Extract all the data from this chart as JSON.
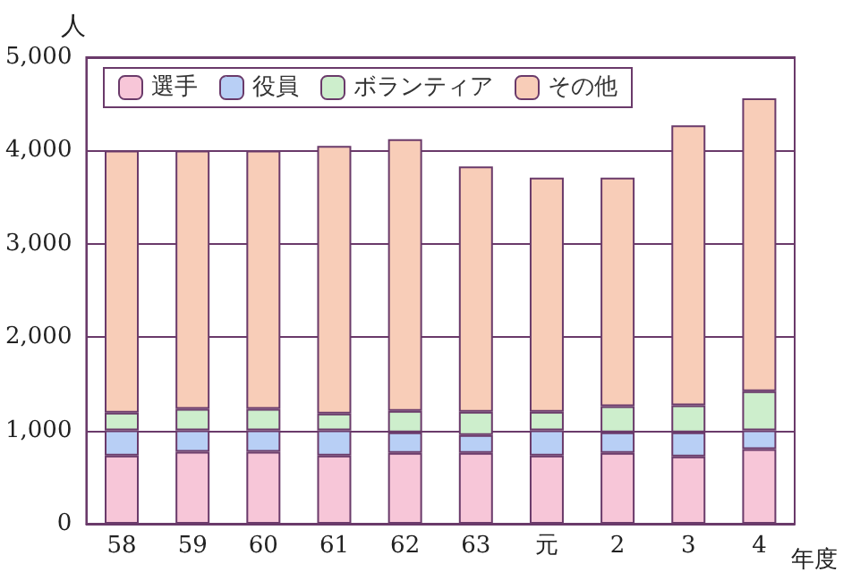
{
  "chart_data": {
    "type": "bar",
    "stacked": true,
    "ylabel": "人",
    "xlabel": "年度",
    "categories": [
      "58",
      "59",
      "60",
      "61",
      "62",
      "63",
      "元",
      "2",
      "3",
      "4"
    ],
    "series": [
      {
        "name": "選手",
        "color": "#f7c6d8",
        "values": [
          730,
          770,
          770,
          730,
          760,
          760,
          730,
          760,
          720,
          800
        ]
      },
      {
        "name": "役員",
        "color": "#b8cff5",
        "values": [
          270,
          230,
          230,
          270,
          220,
          190,
          270,
          220,
          260,
          200
        ]
      },
      {
        "name": "ボランティア",
        "color": "#cdeecc",
        "values": [
          190,
          230,
          230,
          180,
          230,
          250,
          200,
          280,
          290,
          420
        ]
      },
      {
        "name": "その他",
        "color": "#f8cdb8",
        "values": [
          2810,
          2770,
          2770,
          2870,
          2910,
          2630,
          2510,
          2450,
          3000,
          3140
        ]
      }
    ],
    "ylim": [
      0,
      5000
    ],
    "yticks": [
      {
        "value": 0,
        "label": "0"
      },
      {
        "value": 1000,
        "label": "1,000"
      },
      {
        "value": 2000,
        "label": "2,000"
      },
      {
        "value": 3000,
        "label": "3,000"
      },
      {
        "value": 4000,
        "label": "4,000"
      },
      {
        "value": 5000,
        "label": "5,000"
      }
    ],
    "grid": "y",
    "legend": "top left"
  }
}
